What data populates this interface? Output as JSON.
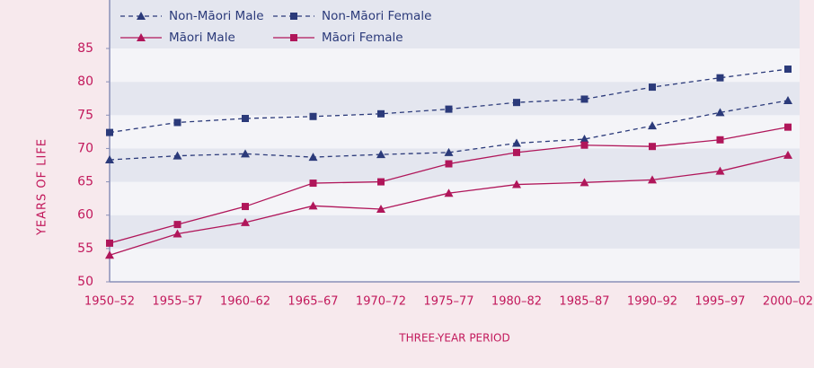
{
  "chart_data": {
    "type": "line",
    "x_label": "THREE-YEAR PERIOD",
    "y_label": "YEARS OF LIFE",
    "categories": [
      "1950–52",
      "1955–57",
      "1960–62",
      "1965–67",
      "1970–72",
      "1975–77",
      "1980–82",
      "1985–87",
      "1990–92",
      "1995–97",
      "2000–02"
    ],
    "series": [
      {
        "name": "Non-Māori Male",
        "color": "#2b3a7a",
        "line_style": "dashed",
        "marker": "triangle",
        "values": [
          68.3,
          68.9,
          69.2,
          68.7,
          69.1,
          69.4,
          70.8,
          71.4,
          73.4,
          75.4,
          77.2
        ]
      },
      {
        "name": "Non-Māori Female",
        "color": "#2b3a7a",
        "line_style": "dashed",
        "marker": "square",
        "values": [
          72.4,
          73.9,
          74.5,
          74.8,
          75.2,
          75.9,
          76.9,
          77.4,
          79.2,
          80.6,
          81.9
        ]
      },
      {
        "name": "Māori Male",
        "color": "#b0165a",
        "line_style": "solid",
        "marker": "triangle",
        "values": [
          54.0,
          57.2,
          58.9,
          61.4,
          60.9,
          63.3,
          64.6,
          64.9,
          65.3,
          66.6,
          69.0
        ]
      },
      {
        "name": "Māori Female",
        "color": "#b0165a",
        "line_style": "solid",
        "marker": "square",
        "values": [
          55.8,
          58.6,
          61.3,
          64.8,
          65.0,
          67.7,
          69.4,
          70.5,
          70.3,
          71.3,
          73.2
        ]
      }
    ],
    "ylim": [
      50,
      92
    ],
    "yticks": [
      50,
      55,
      60,
      65,
      70,
      75,
      80,
      85
    ],
    "legend": "upper left",
    "grid": true
  }
}
